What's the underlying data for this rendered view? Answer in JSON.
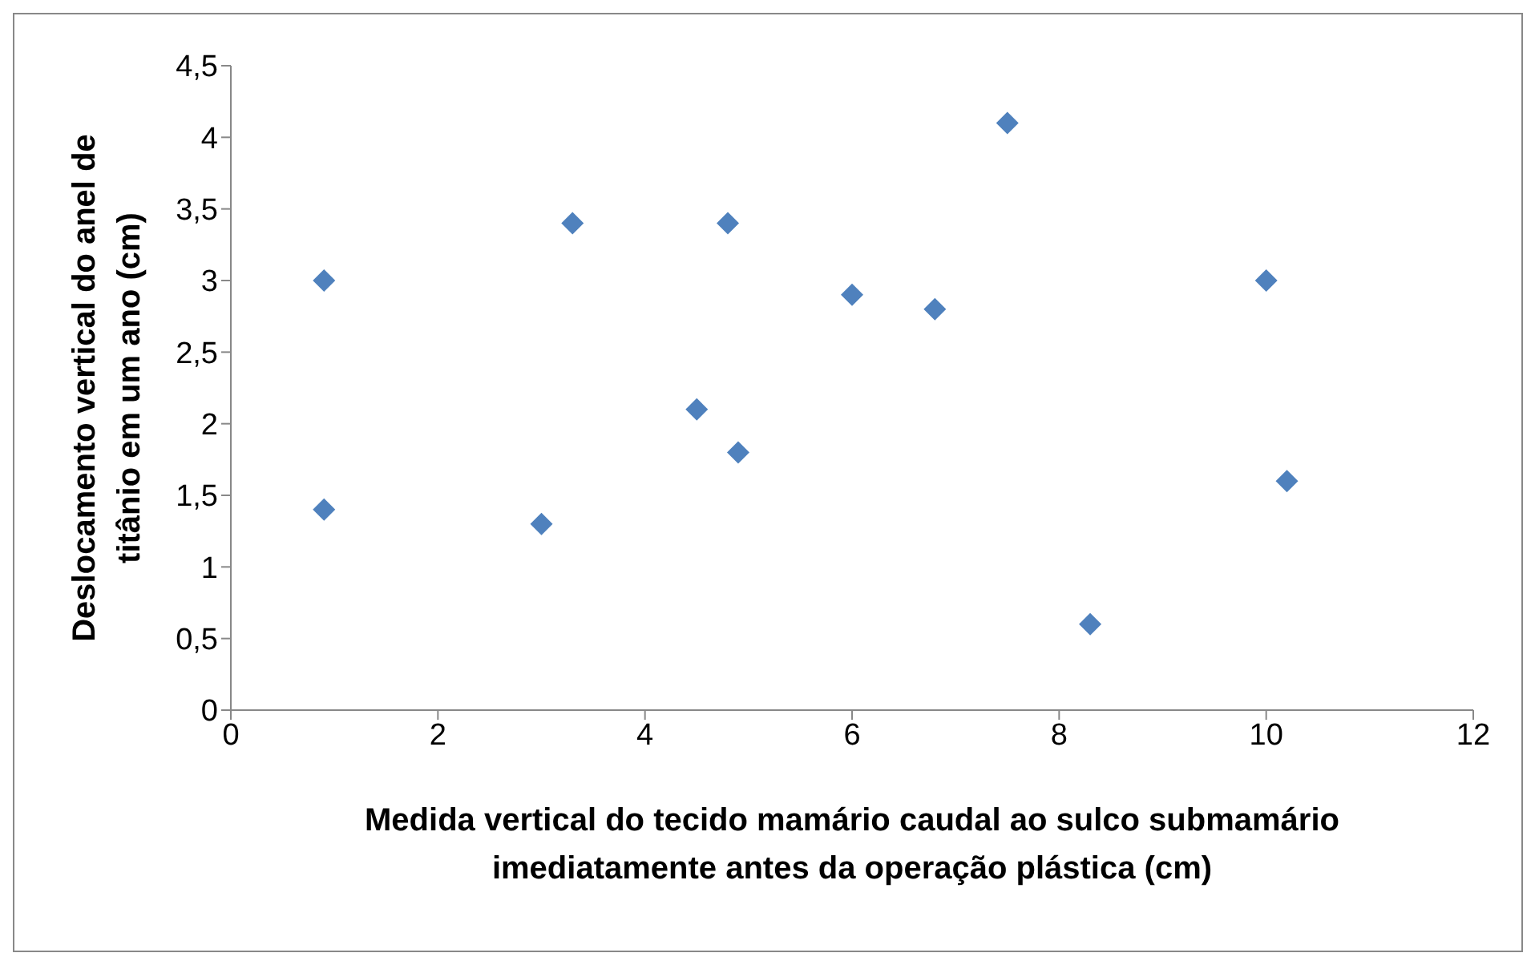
{
  "chart_data": {
    "type": "scatter",
    "xlabel": "Medida vertical do tecido mamário caudal ao sulco submamário imediatamente antes da operação plástica (cm)",
    "ylabel": "Deslocamento vertical do anel de titânio em um ano (cm)",
    "x": [
      0.9,
      0.9,
      3.0,
      3.3,
      4.5,
      4.8,
      4.9,
      6.0,
      6.8,
      7.5,
      8.3,
      10.0,
      10.2
    ],
    "series": [
      {
        "color": "#4f81bd",
        "values": [
          3.0,
          1.4,
          1.3,
          3.4,
          2.1,
          3.4,
          1.8,
          2.9,
          2.8,
          4.1,
          0.6,
          3.0,
          1.6
        ]
      }
    ],
    "xlim": [
      0,
      12
    ],
    "xticks": [
      0,
      2,
      4,
      6,
      8,
      10,
      12
    ],
    "ylim": [
      0,
      4.5
    ],
    "yticks": [
      {
        "value": 0,
        "label": "0"
      },
      {
        "value": 0.5,
        "label": "0,5"
      },
      {
        "value": 1,
        "label": "1"
      },
      {
        "value": 1.5,
        "label": "1,5"
      },
      {
        "value": 2,
        "label": "2"
      },
      {
        "value": 2.5,
        "label": "2,5"
      },
      {
        "value": 3,
        "label": "3"
      },
      {
        "value": 3.5,
        "label": "3,5"
      },
      {
        "value": 4,
        "label": "4"
      },
      {
        "value": 4.5,
        "label": "4,5"
      }
    ],
    "grid": false,
    "legend": false,
    "marker": "diamond"
  }
}
